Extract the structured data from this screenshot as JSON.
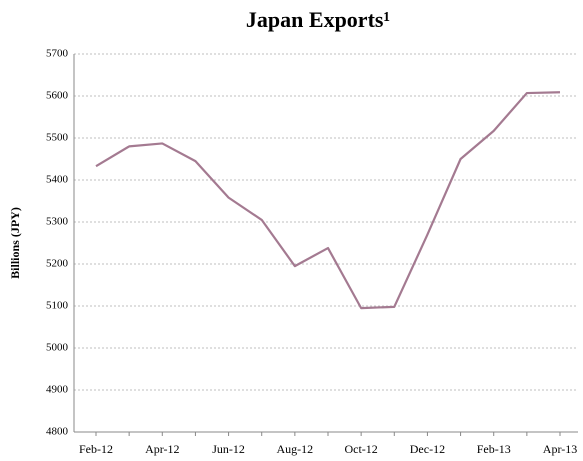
{
  "chart_data": {
    "type": "line",
    "title": "Japan Exports¹",
    "y_label": "Billions (JPY)",
    "categories": [
      "Feb-12",
      null,
      "Apr-12",
      null,
      "Jun-12",
      null,
      "Aug-12",
      null,
      "Oct-12",
      null,
      "Dec-12",
      null,
      "Feb-13",
      null,
      "Apr-13"
    ],
    "series": [
      {
        "name": "Japan Exports",
        "color": "#a47a91",
        "values": [
          5433,
          5480,
          5487,
          5445,
          5358,
          5305,
          5195,
          5238,
          5095,
          5098,
          5270,
          5450,
          5517,
          5607,
          5609
        ]
      }
    ],
    "ylim": [
      4800,
      5700
    ],
    "yticks": [
      4800,
      4900,
      5000,
      5100,
      5200,
      5300,
      5400,
      5500,
      5600,
      5700
    ],
    "grid": true
  }
}
